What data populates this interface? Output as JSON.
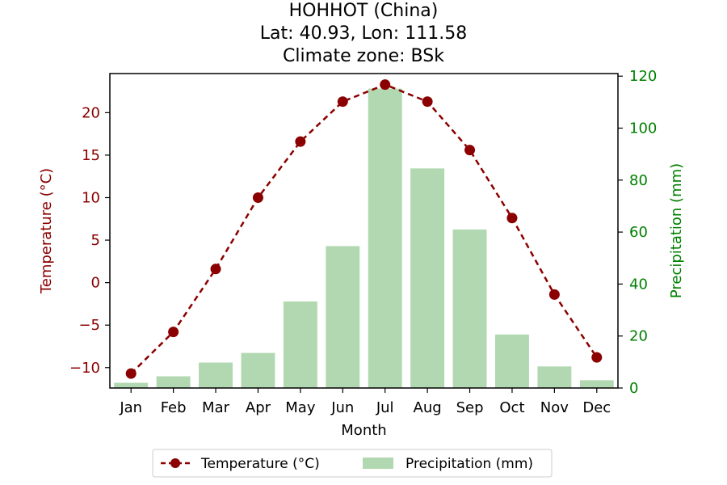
{
  "chart_data": {
    "type": "bar+line",
    "title_lines": [
      "HOHHOT (China)",
      "Lat: 40.93, Lon: 111.58",
      "Climate zone: BSk"
    ],
    "xlabel": "Month",
    "categories": [
      "Jan",
      "Feb",
      "Mar",
      "Apr",
      "May",
      "Jun",
      "Jul",
      "Aug",
      "Sep",
      "Oct",
      "Nov",
      "Dec"
    ],
    "series": [
      {
        "name": "Temperature (°C)",
        "type": "line",
        "axis": "left",
        "values": [
          -10.7,
          -5.8,
          1.6,
          10.0,
          16.6,
          21.3,
          23.3,
          21.3,
          15.6,
          7.6,
          -1.4,
          -8.8
        ],
        "color": "#8b0000"
      },
      {
        "name": "Precipitation (mm)",
        "type": "bar",
        "axis": "right",
        "values": [
          2,
          4.5,
          9.8,
          13.5,
          33.3,
          54.6,
          115.2,
          84.5,
          61.0,
          20.6,
          8.3,
          3.0
        ],
        "color": "#b2d8b2"
      }
    ],
    "ylabel_left": "Temperature (°C)",
    "ylim_left": [
      -12.4,
      24.6
    ],
    "yticks_left": [
      -10,
      -5,
      0,
      5,
      10,
      15,
      20
    ],
    "ylabel_right": "Precipitation (mm)",
    "ylim_right": [
      0,
      121
    ],
    "yticks_right": [
      0,
      20,
      40,
      60,
      80,
      100,
      120
    ],
    "left_axis_color": "#8b0000",
    "right_axis_color": "#008000",
    "grid": false,
    "legend": {
      "placement": "bottom-center",
      "entries": [
        "Temperature (°C)",
        "Precipitation (mm)"
      ]
    }
  }
}
